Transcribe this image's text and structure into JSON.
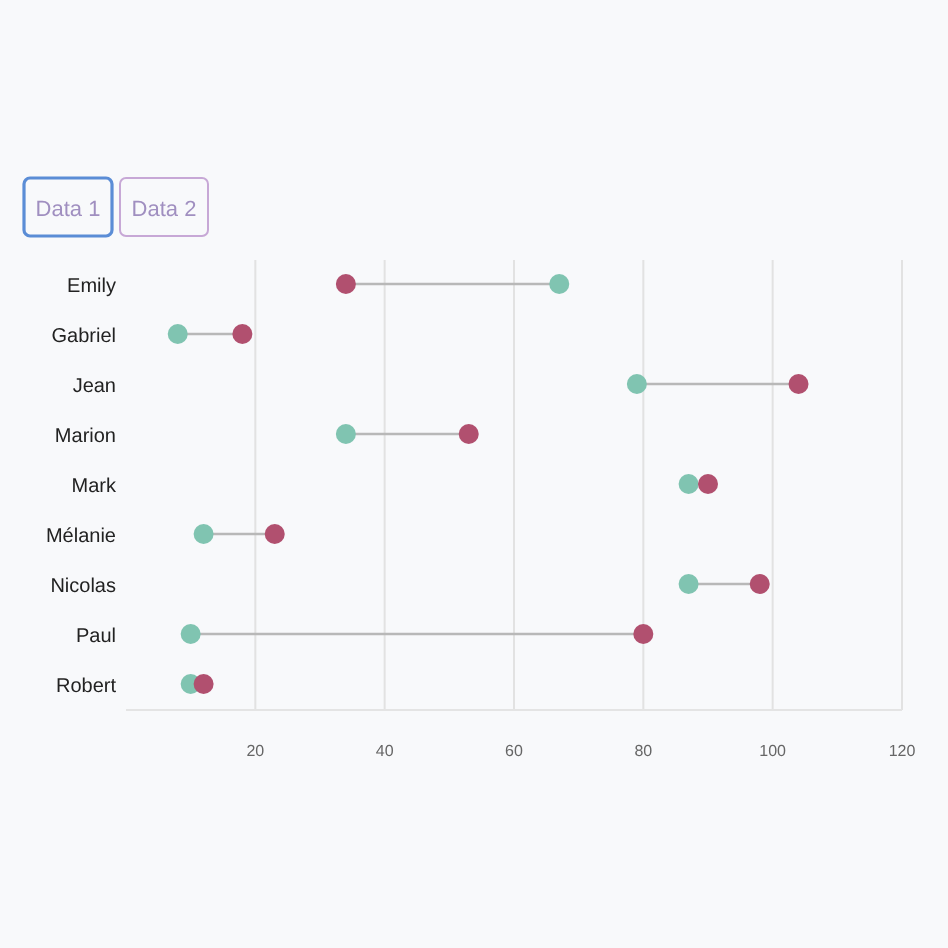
{
  "chart_data": {
    "type": "scatter",
    "orientation": "horizontal",
    "categories": [
      "Emily",
      "Gabriel",
      "Jean",
      "Marion",
      "Mark",
      "Mélanie",
      "Nicolas",
      "Paul",
      "Robert"
    ],
    "series": [
      {
        "color": "#80c4b1",
        "values": [
          67,
          8,
          79,
          34,
          87,
          12,
          87,
          10,
          10
        ]
      },
      {
        "color": "#b1506f",
        "values": [
          34,
          18,
          104,
          53,
          90,
          23,
          98,
          80,
          12
        ]
      }
    ],
    "xlim": [
      0,
      120
    ],
    "xticks": [
      20,
      40,
      60,
      80,
      100,
      120
    ],
    "grid": "x",
    "marker": "circle",
    "annotations": [
      "Data 1",
      "Data 2"
    ]
  }
}
